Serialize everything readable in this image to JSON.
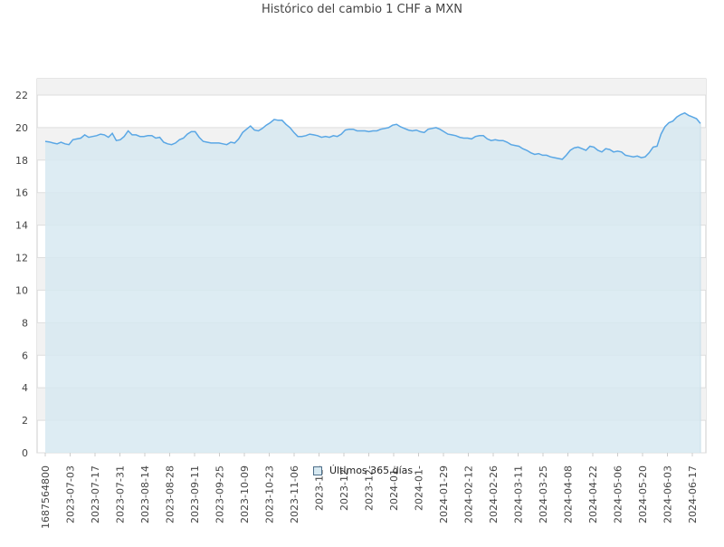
{
  "chart_data": {
    "type": "area",
    "title": "Histórico del cambio 1 CHF a MXN",
    "xlabel": "",
    "ylabel": "",
    "ylim": [
      0,
      23
    ],
    "yticks": [
      0,
      2,
      4,
      6,
      8,
      10,
      12,
      14,
      16,
      18,
      20,
      22
    ],
    "x_tick_labels": [
      "1687564800",
      "2023-07-03",
      "2023-07-17",
      "2023-07-31",
      "2023-08-14",
      "2023-08-28",
      "2023-09-11",
      "2023-09-25",
      "2023-10-09",
      "2023-10-23",
      "2023-11-06",
      "2023-11-",
      "2023-12-",
      "2023-12-",
      "2024-01-",
      "2024-01-",
      "2024-01-29",
      "2024-02-12",
      "2024-02-26",
      "2024-03-11",
      "2024-03-25",
      "2024-04-08",
      "2024-04-22",
      "2024-05-06",
      "2024-05-20",
      "2024-06-03",
      "2024-06-17"
    ],
    "grid": true,
    "legend_position": "bottom",
    "colors": {
      "line": "#5aa7e5",
      "area": "#d7e9f1",
      "band": "#f2f2f2",
      "grid": "#dddddd",
      "axis": "#cccccc",
      "text": "#444444"
    },
    "series": [
      {
        "name": "Últimos 365 días",
        "x_start": "2023-06-24",
        "x_end": "2024-06-23",
        "values": [
          19.15,
          19.12,
          19.05,
          19.0,
          19.1,
          19.0,
          18.95,
          19.25,
          19.3,
          19.35,
          19.55,
          19.4,
          19.45,
          19.5,
          19.6,
          19.55,
          19.4,
          19.65,
          19.2,
          19.25,
          19.45,
          19.8,
          19.55,
          19.55,
          19.45,
          19.45,
          19.5,
          19.5,
          19.35,
          19.4,
          19.1,
          19.0,
          18.95,
          19.05,
          19.25,
          19.35,
          19.6,
          19.75,
          19.75,
          19.4,
          19.15,
          19.1,
          19.05,
          19.05,
          19.05,
          19.0,
          18.95,
          19.1,
          19.05,
          19.3,
          19.7,
          19.9,
          20.1,
          19.85,
          19.8,
          19.95,
          20.15,
          20.3,
          20.5,
          20.45,
          20.45,
          20.2,
          20.0,
          19.7,
          19.45,
          19.45,
          19.5,
          19.6,
          19.55,
          19.5,
          19.4,
          19.45,
          19.4,
          19.5,
          19.45,
          19.6,
          19.85,
          19.9,
          19.9,
          19.8,
          19.8,
          19.8,
          19.75,
          19.8,
          19.8,
          19.9,
          19.95,
          20.0,
          20.15,
          20.2,
          20.05,
          19.95,
          19.85,
          19.8,
          19.85,
          19.75,
          19.7,
          19.9,
          19.95,
          20.0,
          19.9,
          19.75,
          19.6,
          19.55,
          19.5,
          19.4,
          19.35,
          19.35,
          19.3,
          19.45,
          19.5,
          19.5,
          19.3,
          19.2,
          19.25,
          19.2,
          19.2,
          19.1,
          18.95,
          18.9,
          18.85,
          18.7,
          18.6,
          18.45,
          18.35,
          18.4,
          18.3,
          18.3,
          18.2,
          18.15,
          18.1,
          18.05,
          18.3,
          18.6,
          18.75,
          18.8,
          18.7,
          18.6,
          18.85,
          18.8,
          18.6,
          18.5,
          18.7,
          18.65,
          18.5,
          18.55,
          18.5,
          18.3,
          18.25,
          18.2,
          18.25,
          18.15,
          18.2,
          18.45,
          18.8,
          18.85,
          19.6,
          20.05,
          20.3,
          20.4,
          20.65,
          20.8,
          20.9,
          20.75,
          20.65,
          20.55,
          20.25
        ]
      }
    ]
  }
}
